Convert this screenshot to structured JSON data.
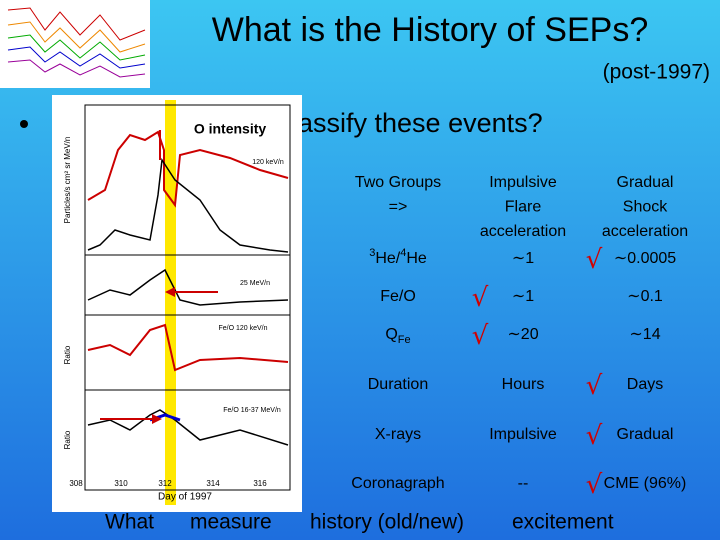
{
  "header": {
    "title": "What is the History of SEPs?",
    "subtitle": "(post-1997)"
  },
  "bullet": "assify these events?",
  "figure": {
    "title": "O intensity",
    "x_label": "Day of 1997",
    "x_ticks": [
      "308",
      "310",
      "312",
      "314",
      "316"
    ],
    "y_labels": [
      "Particles/s cm² sr MeV/n",
      "Ratio",
      "Ratio"
    ],
    "curve_labels": [
      "120 keV/n",
      "25 MeV/n",
      "Fe/O 120 keV/n",
      "Fe/O 16-37 MeV/n"
    ]
  },
  "table": {
    "header": [
      [
        "Two Groups",
        "=>"
      ],
      [
        "Impulsive",
        "Flare",
        "acceleration"
      ],
      [
        "Gradual",
        "Shock",
        "acceleration"
      ]
    ],
    "rows": [
      {
        "label": [
          {
            "sup": "3"
          },
          {
            "text": "He/"
          },
          {
            "sup": "4"
          },
          {
            "text": "He"
          }
        ],
        "impulsive": "∼1",
        "gradual": "∼0.0005",
        "check": "√",
        "check_on": "gradual"
      },
      {
        "label": [
          {
            "text": "Fe/O"
          }
        ],
        "impulsive": "∼1",
        "gradual": "∼0.1",
        "check": "√",
        "check_on": "impulsive"
      },
      {
        "label": [
          {
            "text": "Q"
          },
          {
            "sub": "Fe"
          }
        ],
        "impulsive": "∼20",
        "gradual": "∼14",
        "check": "√",
        "check_on": "impulsive"
      },
      {
        "label": [
          {
            "text": "Duration"
          }
        ],
        "impulsive": "Hours",
        "gradual": "Days",
        "check": "√",
        "check_on": "gradual"
      },
      {
        "label": [
          {
            "text": "X-rays"
          }
        ],
        "impulsive": "Impulsive",
        "gradual": "Gradual",
        "check": "√",
        "check_on": "gradual"
      },
      {
        "label": [
          {
            "text": "Coronagraph"
          }
        ],
        "impulsive": "--",
        "gradual": "CME (96%)",
        "check": "√",
        "check_on": "gradual"
      }
    ]
  },
  "footer": [
    "What",
    "measure",
    "history (old/new)",
    "excitement"
  ]
}
